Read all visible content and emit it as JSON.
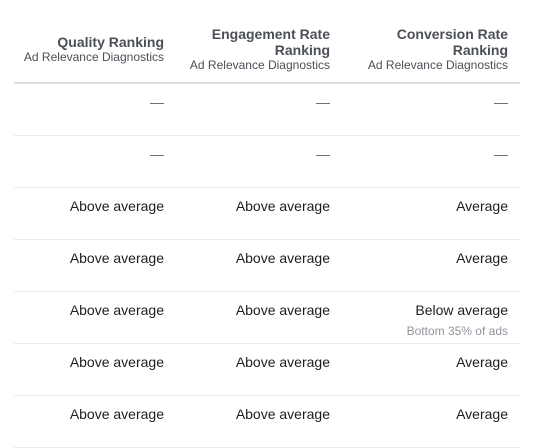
{
  "columns": [
    {
      "title_lines": [
        "Quality Ranking"
      ],
      "subtitle": "Ad Relevance Diagnostics"
    },
    {
      "title_lines": [
        "Engagement Rate",
        "Ranking"
      ],
      "subtitle": "Ad Relevance Diagnostics"
    },
    {
      "title_lines": [
        "Conversion Rate",
        "Ranking"
      ],
      "subtitle": "Ad Relevance Diagnostics"
    }
  ],
  "rows": [
    {
      "quality": "—",
      "engagement": "—",
      "conversion": "—",
      "conversion_note": ""
    },
    {
      "quality": "—",
      "engagement": "—",
      "conversion": "—",
      "conversion_note": ""
    },
    {
      "quality": "Above average",
      "engagement": "Above average",
      "conversion": "Average",
      "conversion_note": ""
    },
    {
      "quality": "Above average",
      "engagement": "Above average",
      "conversion": "Average",
      "conversion_note": ""
    },
    {
      "quality": "Above average",
      "engagement": "Above average",
      "conversion": "Below average",
      "conversion_note": "Bottom 35% of ads"
    },
    {
      "quality": "Above average",
      "engagement": "Above average",
      "conversion": "Average",
      "conversion_note": ""
    },
    {
      "quality": "Above average",
      "engagement": "Above average",
      "conversion": "Average",
      "conversion_note": ""
    }
  ]
}
